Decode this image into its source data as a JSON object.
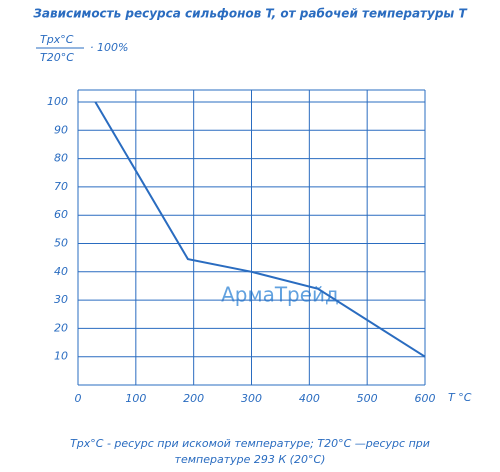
{
  "chart_data": {
    "type": "line",
    "title": "Зависимость ресурса сильфонов T, от рабочей температуры T",
    "y_label_numerator": "Tрх°С",
    "y_label_denominator": "T20°С",
    "y_label_suffix": "· 100%",
    "x_label": "T °C",
    "x": [
      30,
      190,
      300,
      415,
      600
    ],
    "series": [
      {
        "color": "#2a6cc0",
        "values": [
          100,
          44.5,
          40,
          34,
          10
        ]
      }
    ],
    "xlim": [
      0,
      600
    ],
    "xticks": [
      0,
      100,
      200,
      300,
      400,
      500,
      600
    ],
    "ylim": [
      0,
      100
    ],
    "yticks": [
      10,
      20,
      30,
      40,
      50,
      60,
      70,
      80,
      90,
      100
    ],
    "grid": true,
    "watermark": "АрмаТрейд",
    "footnote_line1": "Tрх°С - ресурс при искомой температуре; T20°С —ресурс при",
    "footnote_line2": "температуре 293 К (20°С)"
  }
}
